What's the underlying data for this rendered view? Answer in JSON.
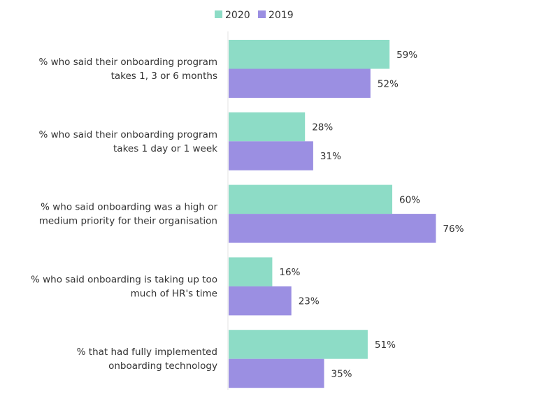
{
  "chart_data": {
    "type": "bar",
    "orientation": "horizontal",
    "categories": [
      [
        "% who said their onboarding program",
        "takes 1, 3 or 6 months"
      ],
      [
        "% who said their onboarding program",
        "takes 1 day or 1 week"
      ],
      [
        "% who said onboarding was a high or",
        "medium priority for their organisation"
      ],
      [
        "% who said onboarding is taking up too",
        "much of HR's time"
      ],
      [
        "% that had fully implemented",
        "onboarding technology"
      ]
    ],
    "series": [
      {
        "name": "2020",
        "color": "#8ddcc6",
        "values": [
          59,
          28,
          60,
          16,
          51
        ],
        "labels": [
          "59%",
          "28%",
          "60%",
          "16%",
          "51%"
        ]
      },
      {
        "name": "2019",
        "color": "#9b8fe2",
        "values": [
          52,
          31,
          76,
          23,
          35
        ],
        "labels": [
          "52%",
          "31%",
          "76%",
          "23%",
          "35%"
        ]
      }
    ],
    "xlim": [
      0,
      100
    ],
    "grid": false,
    "legend": "top"
  }
}
